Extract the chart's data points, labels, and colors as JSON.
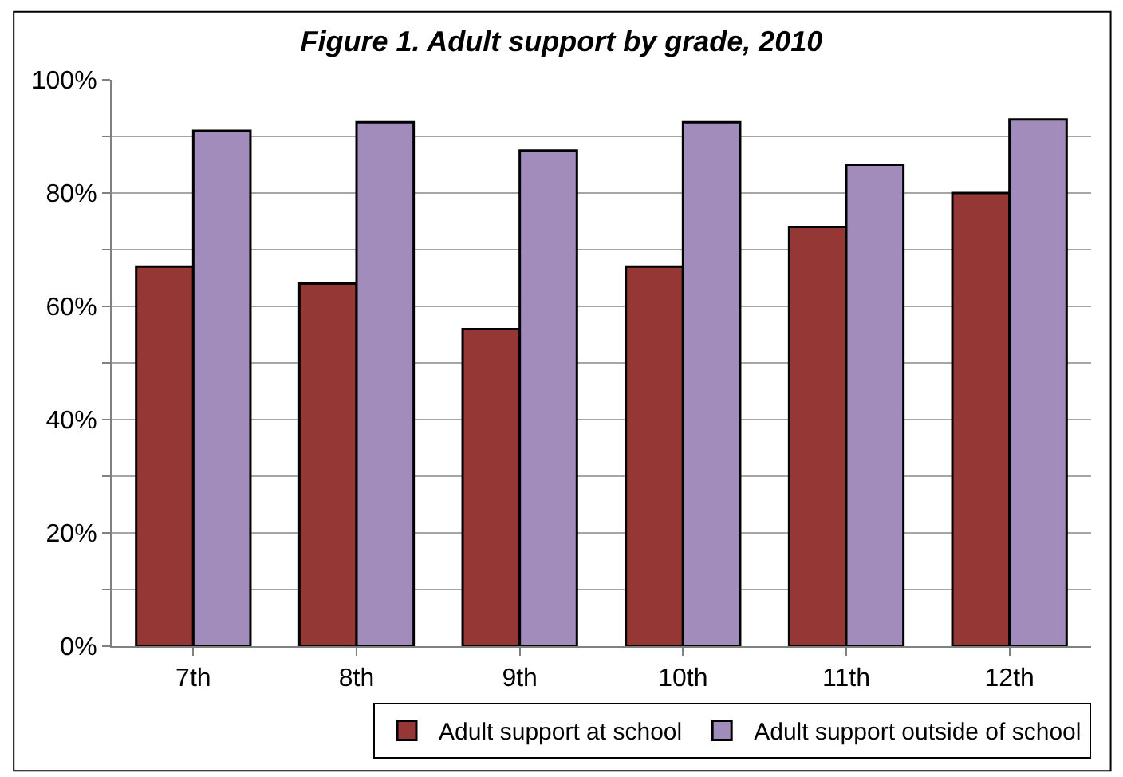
{
  "chart_data": {
    "type": "bar",
    "title": "Figure 1. Adult support by grade, 2010",
    "categories": [
      "7th",
      "8th",
      "9th",
      "10th",
      "11th",
      "12th"
    ],
    "series": [
      {
        "name": "Adult support at school",
        "color": "#953735",
        "values": [
          67,
          64,
          56,
          67,
          74,
          80
        ]
      },
      {
        "name": "Adult support outside of school",
        "color": "#a28cbc",
        "values": [
          91,
          92.5,
          87.5,
          92.5,
          85,
          93
        ]
      }
    ],
    "ylim": [
      0,
      100
    ],
    "yticks": [
      {
        "value": 0,
        "label": "0%"
      },
      {
        "value": 10,
        "label": null
      },
      {
        "value": 20,
        "label": "20%"
      },
      {
        "value": 30,
        "label": null
      },
      {
        "value": 40,
        "label": "40%"
      },
      {
        "value": 50,
        "label": null
      },
      {
        "value": 60,
        "label": "60%"
      },
      {
        "value": 70,
        "label": null
      },
      {
        "value": 80,
        "label": "80%"
      },
      {
        "value": 90,
        "label": null
      },
      {
        "value": 100,
        "label": "100%"
      }
    ],
    "grid": "y",
    "legend": "bottom right"
  }
}
